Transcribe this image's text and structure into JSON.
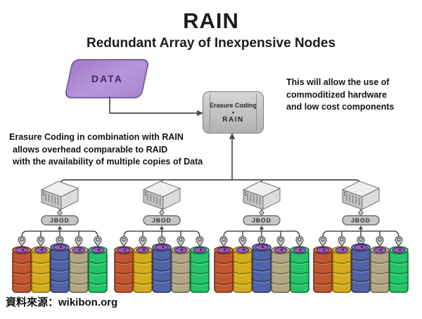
{
  "title": "RAIN",
  "subtitle": "Redundant Array of Inexpensive Nodes",
  "data_shape": {
    "label": "DATA",
    "fill": "#a07bc8",
    "border": "#7a5fa0"
  },
  "erasure_box": {
    "line1": "Erasure Coding",
    "bullet": "•",
    "line2": "RAIN"
  },
  "right_note": {
    "lines": [
      "This will allow the use of",
      "commoditized hardware",
      "and low cost components"
    ]
  },
  "left_note": {
    "lines": [
      "Erasure Coding in combination with RAIN",
      "allows overhead comparable to RAID",
      "with the availability of multiple copies of Data"
    ]
  },
  "cluster": {
    "node_count": 4,
    "jbod_label": "JBOD",
    "disks_per_node": 5,
    "disk_colors": [
      {
        "name": "orange",
        "body": "#bf5733",
        "dark": "#6f2a12",
        "light": "#d97f50"
      },
      {
        "name": "yellow",
        "body": "#d4ac1e",
        "dark": "#7d650d",
        "light": "#e8c84a"
      },
      {
        "name": "blue",
        "body": "#5163a4",
        "dark": "#27355f",
        "light": "#7d8cc0",
        "tall": true
      },
      {
        "name": "tan",
        "body": "#b3a884",
        "dark": "#615c3e",
        "light": "#cbc3a2"
      },
      {
        "name": "green",
        "body": "#27c368",
        "dark": "#0e6b38",
        "light": "#55dd90"
      }
    ],
    "platter_color": "#9a5fb5",
    "platter_dark": "#4f2a6e"
  },
  "source_caption": "資料來源：wikibon.org",
  "colors": {
    "line": "#4c4c4c",
    "pill_fill": "#c6c6c6",
    "pill_border": "#6e6e6e",
    "server_gray": "#d9d9d9"
  }
}
